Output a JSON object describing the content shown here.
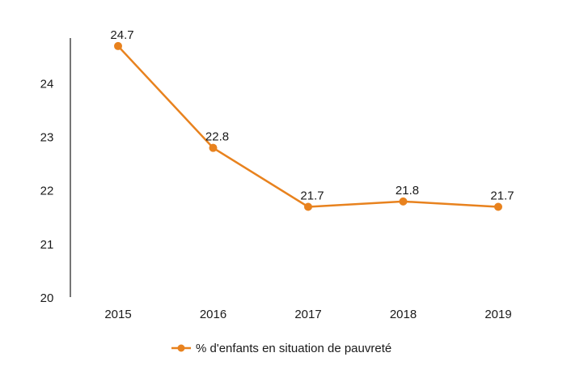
{
  "chart_data": {
    "type": "line",
    "title": "",
    "xlabel": "",
    "ylabel": "",
    "categories": [
      "2015",
      "2016",
      "2017",
      "2018",
      "2019"
    ],
    "series": [
      {
        "name": "% d'enfants en situation de pauvreté",
        "values": [
          24.7,
          22.8,
          21.7,
          21.8,
          21.7
        ],
        "labels": [
          "24.7",
          "22.8",
          "21.7",
          "21.8",
          "21.7"
        ],
        "color": "#e8821e"
      }
    ],
    "y_ticks": [
      "20",
      "21",
      "22",
      "23",
      "24"
    ],
    "ylim": [
      20,
      24.85
    ],
    "grid": false,
    "legend": "bottom-center"
  }
}
